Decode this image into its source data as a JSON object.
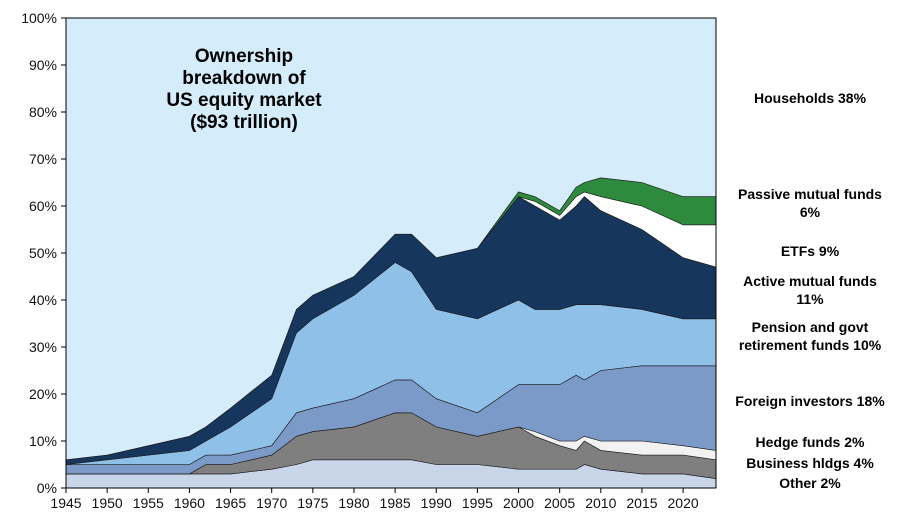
{
  "chart_data": {
    "type": "area",
    "stacked": true,
    "title_lines": [
      "Ownership",
      "breakdown  of",
      "US equity market",
      "($93 trillion)"
    ],
    "xlabel": "",
    "ylabel": "",
    "xlim": [
      1945,
      2024
    ],
    "ylim": [
      0,
      100
    ],
    "x_ticks": [
      1945,
      1950,
      1955,
      1960,
      1965,
      1970,
      1975,
      1980,
      1985,
      1990,
      1995,
      2000,
      2005,
      2010,
      2015,
      2020
    ],
    "y_ticks": [
      0,
      10,
      20,
      30,
      40,
      50,
      60,
      70,
      80,
      90,
      100
    ],
    "y_tick_suffix": "%",
    "grid": false,
    "x": [
      1945,
      1950,
      1955,
      1960,
      1962,
      1965,
      1970,
      1973,
      1975,
      1980,
      1985,
      1987,
      1990,
      1995,
      2000,
      2002,
      2005,
      2007,
      2008,
      2010,
      2015,
      2020,
      2024
    ],
    "series": [
      {
        "name": "Other",
        "color": "#c9d6ea",
        "values": [
          3,
          3,
          3,
          3,
          3,
          3,
          4,
          5,
          6,
          6,
          6,
          6,
          5,
          5,
          4,
          4,
          4,
          4,
          5,
          4,
          3,
          3,
          2
        ]
      },
      {
        "name": "Business hldgs",
        "color": "#7f7f7f",
        "values": [
          0,
          0,
          0,
          0,
          2,
          2,
          3,
          6,
          6,
          7,
          10,
          10,
          8,
          6,
          9,
          7,
          5,
          4,
          5,
          4,
          4,
          4,
          4
        ]
      },
      {
        "name": "Hedge funds",
        "color": "#f2f2f2",
        "values": [
          0,
          0,
          0,
          0,
          0,
          0,
          0,
          0,
          0,
          0,
          0,
          0,
          0,
          0,
          0,
          1,
          1,
          2,
          1,
          2,
          3,
          2,
          2
        ]
      },
      {
        "name": "Foreign investors",
        "color": "#7b9ac8",
        "values": [
          2,
          2,
          2,
          2,
          2,
          2,
          2,
          5,
          5,
          6,
          7,
          7,
          6,
          5,
          9,
          10,
          12,
          14,
          12,
          15,
          16,
          17,
          18
        ]
      },
      {
        "name": "Pension and govt retirement funds",
        "color": "#8fc0e8",
        "values": [
          0,
          1,
          2,
          3,
          3,
          6,
          10,
          17,
          19,
          22,
          25,
          23,
          19,
          20,
          18,
          16,
          16,
          15,
          16,
          14,
          12,
          10,
          10
        ]
      },
      {
        "name": "Active mutual funds",
        "color": "#17365d",
        "values": [
          1,
          1,
          2,
          3,
          3,
          4,
          5,
          5,
          5,
          4,
          6,
          8,
          11,
          15,
          22,
          22,
          19,
          21,
          23,
          20,
          17,
          13,
          11
        ]
      },
      {
        "name": "ETFs",
        "color": "#ffffff",
        "values": [
          0,
          0,
          0,
          0,
          0,
          0,
          0,
          0,
          0,
          0,
          0,
          0,
          0,
          0,
          0,
          1,
          1,
          2,
          1,
          3,
          5,
          7,
          9
        ]
      },
      {
        "name": "Passive mutual funds",
        "color": "#2e8b3e",
        "values": [
          0,
          0,
          0,
          0,
          0,
          0,
          0,
          0,
          0,
          0,
          0,
          0,
          0,
          0,
          1,
          1,
          1,
          2,
          2,
          4,
          5,
          6,
          6
        ]
      },
      {
        "name": "Households",
        "color": "#d5ecfa",
        "values": [
          94,
          93,
          91,
          89,
          87,
          83,
          76,
          62,
          59,
          55,
          46,
          46,
          51,
          49,
          37,
          38,
          41,
          36,
          35,
          34,
          35,
          38,
          38
        ]
      }
    ],
    "legend_labels": [
      {
        "lines": [
          "Households 38%"
        ]
      },
      {
        "lines": [
          "Passive mutual funds",
          "6%"
        ]
      },
      {
        "lines": [
          "ETFs 9%"
        ]
      },
      {
        "lines": [
          "Active mutual funds",
          "11%"
        ]
      },
      {
        "lines": [
          "Pension and govt",
          "retirement funds 10%"
        ]
      },
      {
        "lines": [
          "Foreign investors 18%"
        ]
      },
      {
        "lines": [
          "Hedge funds 2%"
        ]
      },
      {
        "lines": [
          "Business hldgs 4%"
        ]
      },
      {
        "lines": [
          "Other 2%"
        ]
      }
    ],
    "legend_placement": "right"
  }
}
